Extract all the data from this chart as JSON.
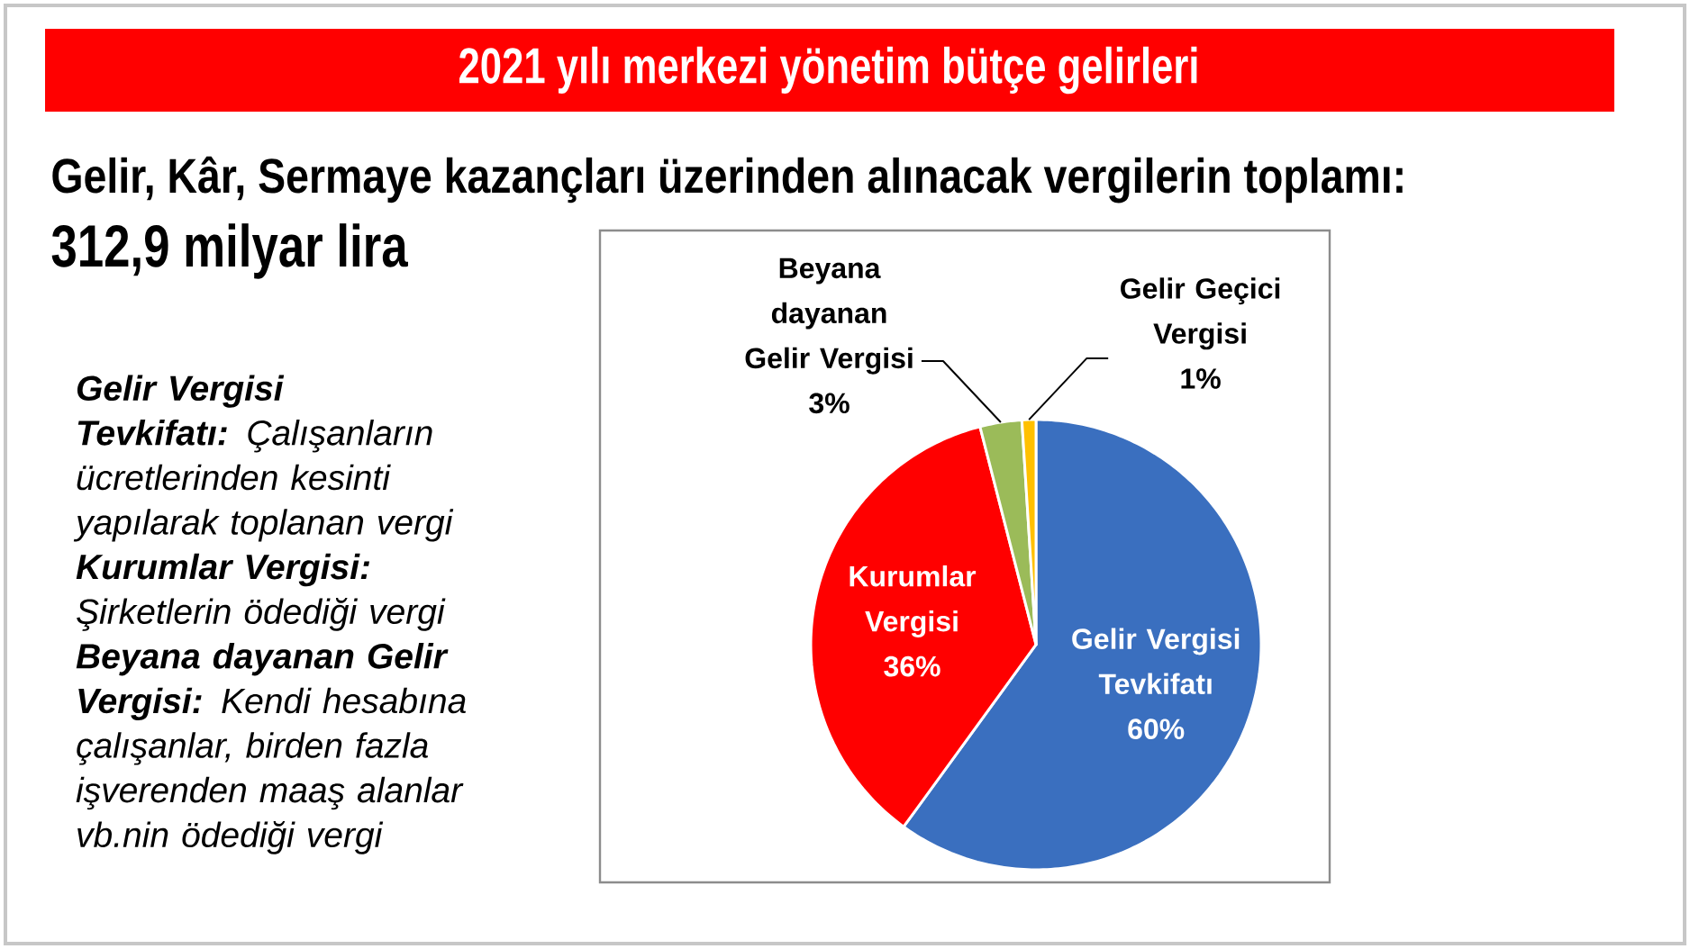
{
  "chart_data": {
    "type": "pie",
    "title": "2021 yılı merkezi yönetim bütçe gelirleri",
    "subtitle": "Gelir, Kâr, Sermaye kazançları üzerinden alınacak vergilerin toplamı:",
    "categories": [
      "Gelir Vergisi Tevkifatı",
      "Kurumlar Vergisi",
      "Beyana dayanan Gelir Vergisi",
      "Gelir Geçici Vergisi"
    ],
    "values": [
      60,
      36,
      3,
      1
    ],
    "colors": [
      "#3a6fbf",
      "#ff0000",
      "#9bbb59",
      "#ffc000"
    ],
    "value_labels": [
      "60%",
      "36%",
      "3%",
      "1%"
    ],
    "annotations": [
      "312,9 milyar lira",
      "**Gelir Vergisi Tevkifatı:** Çalışanların ücretlerinden kesinti yapılarak toplanan vergi",
      "**Kurumlar Vergisi:** Şirketlerin ödediği vergi",
      "**Beyana dayanan Gelir Vergisi:** Kendi hesabına çalışanlar, birden fazla işverenden maaş alanlar vb.nin ödediği vergi"
    ]
  }
}
